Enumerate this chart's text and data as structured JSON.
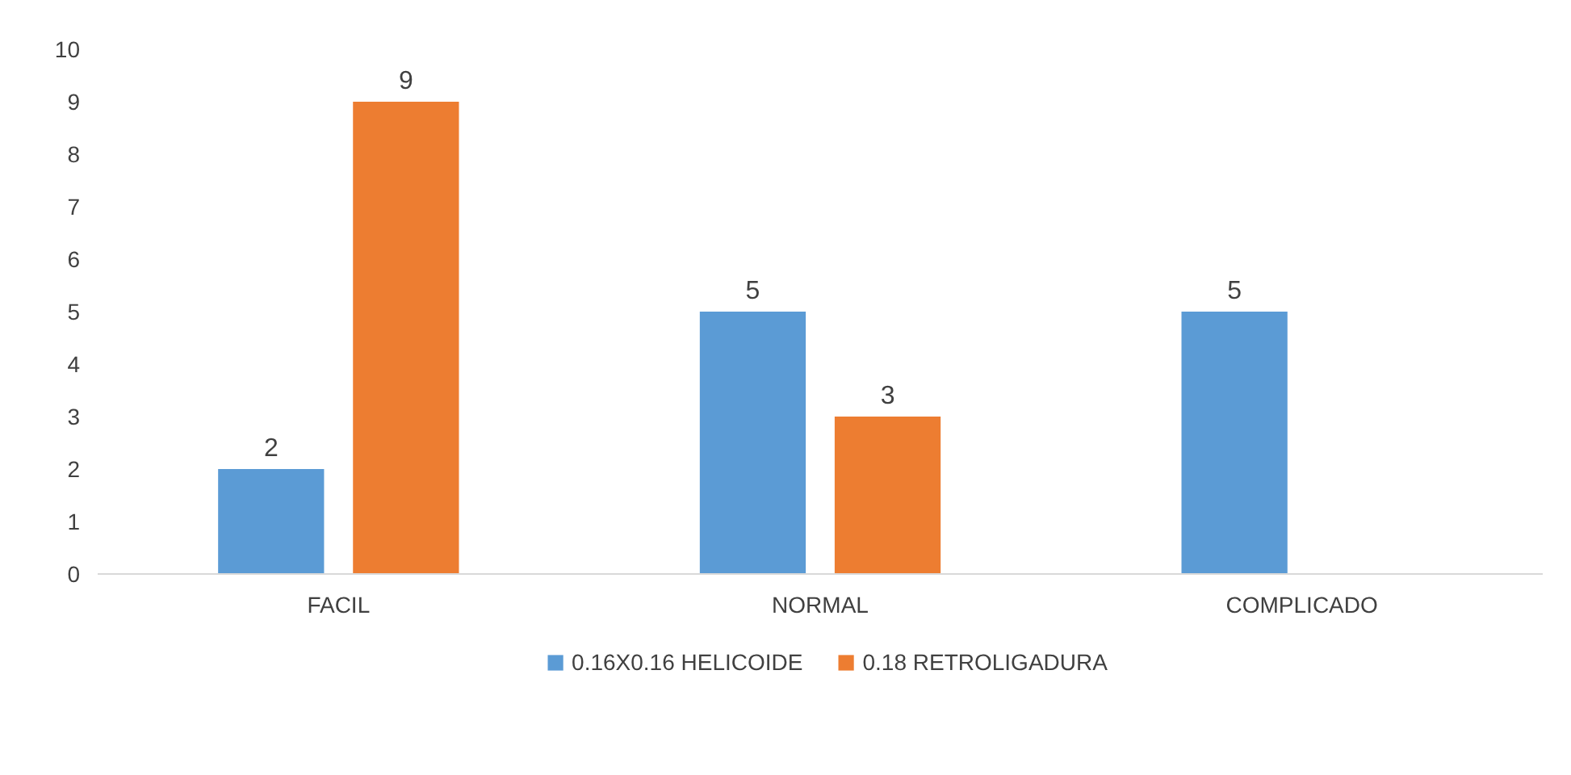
{
  "chart_data": {
    "type": "bar",
    "categories": [
      "FACIL",
      "NORMAL",
      "COMPLICADO"
    ],
    "series": [
      {
        "name": "0.16X0.16 HELICOIDE",
        "color": "#5b9bd5",
        "values": [
          2,
          5,
          5
        ]
      },
      {
        "name": "0.18 RETROLIGADURA",
        "color": "#ed7d31",
        "values": [
          9,
          3,
          null
        ]
      }
    ],
    "ylim": [
      0,
      10
    ],
    "yticks": [
      0,
      1,
      2,
      3,
      4,
      5,
      6,
      7,
      8,
      9,
      10
    ],
    "grid": false,
    "legend": "bottom",
    "data_labels": true
  }
}
